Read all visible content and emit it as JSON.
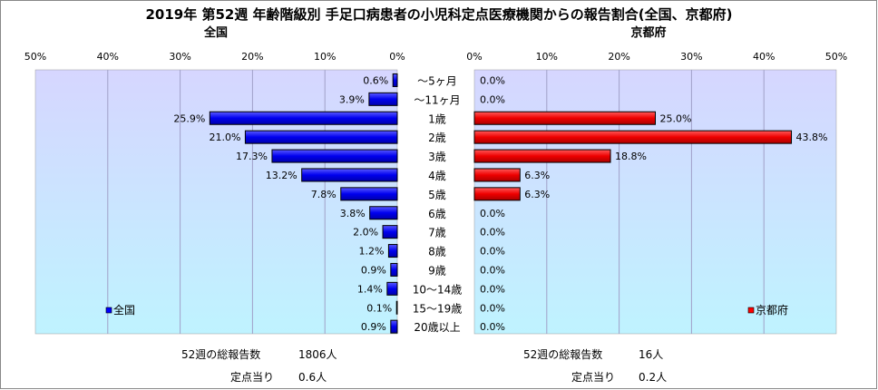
{
  "chart_data": {
    "type": "bar",
    "title": "2019年 第52週 年齢階級別 手足口病患者の小児科定点医療機関からの報告割合(全国、京都府)",
    "categories": [
      "～5ヶ月",
      "～11ヶ月",
      "1歳",
      "2歳",
      "3歳",
      "4歳",
      "5歳",
      "6歳",
      "7歳",
      "8歳",
      "9歳",
      "10～14歳",
      "15～19歳",
      "20歳以上"
    ],
    "unit": "%",
    "panels": [
      {
        "title": "全国",
        "legend": "全国",
        "color": "#0000ff",
        "xlim": [
          0,
          50
        ],
        "ticks": [
          "50%",
          "40%",
          "30%",
          "20%",
          "10%",
          "0%"
        ],
        "values": [
          0.6,
          3.9,
          25.9,
          21.0,
          17.3,
          13.2,
          7.8,
          3.8,
          2.0,
          1.2,
          0.9,
          1.4,
          0.1,
          0.9
        ],
        "labels": [
          "0.6%",
          "3.9%",
          "25.9%",
          "21.0%",
          "17.3%",
          "13.2%",
          "7.8%",
          "3.8%",
          "2.0%",
          "1.2%",
          "0.9%",
          "1.4%",
          "0.1%",
          "0.9%"
        ],
        "total_label": "52週の総報告数",
        "total_value": "1806人",
        "per_label": "定点当り",
        "per_value": "0.6人"
      },
      {
        "title": "京都府",
        "legend": "京都府",
        "color": "#ff0000",
        "xlim": [
          0,
          50
        ],
        "ticks": [
          "0%",
          "10%",
          "20%",
          "30%",
          "40%",
          "50%"
        ],
        "values": [
          0.0,
          0.0,
          25.0,
          43.8,
          18.8,
          6.3,
          6.3,
          0.0,
          0.0,
          0.0,
          0.0,
          0.0,
          0.0,
          0.0
        ],
        "labels": [
          "0.0%",
          "0.0%",
          "25.0%",
          "43.8%",
          "18.8%",
          "6.3%",
          "6.3%",
          "0.0%",
          "0.0%",
          "0.0%",
          "0.0%",
          "0.0%",
          "0.0%",
          "0.0%"
        ],
        "total_label": "52週の総報告数",
        "total_value": "16人",
        "per_label": "定点当り",
        "per_value": "0.2人"
      }
    ],
    "grid": true,
    "legend_position": "bottom-left of each panel"
  }
}
